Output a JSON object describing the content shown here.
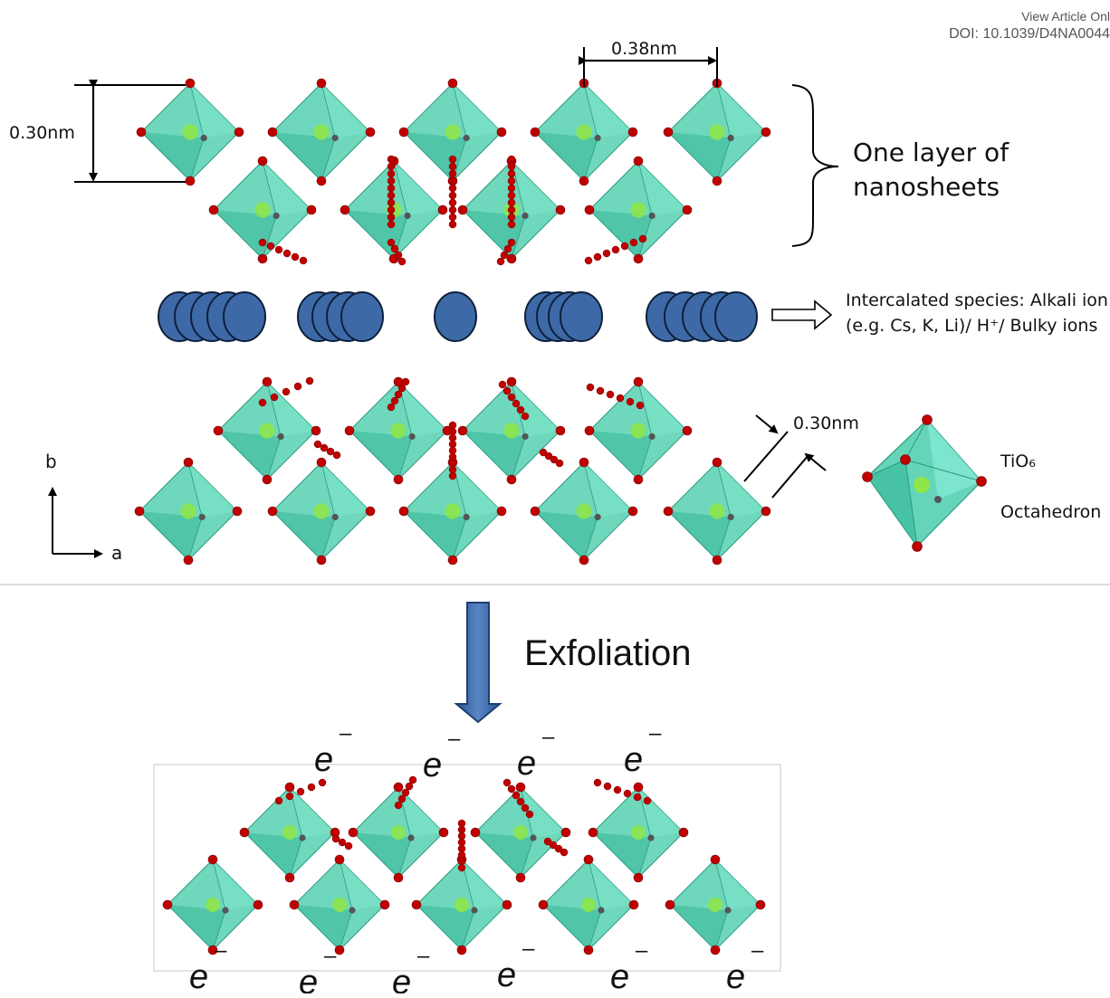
{
  "header": {
    "line1": "View Article Onl",
    "line2": "DOI: 10.1039/D4NA0044"
  },
  "labels": {
    "dim_b": "0.38nm",
    "dim_a": "0.30nm",
    "dim_c": "0.30nm",
    "layer_line1": "One layer of",
    "layer_line2": "nanosheets",
    "intercal_line1": "Intercalated species: Alkali ion",
    "intercal_line2": "(e.g. Cs, K, Li)/ H⁺/ Bulky ions",
    "tio6": "TiO₆",
    "octahedron": "Octahedron",
    "axis_b": "b",
    "axis_a": "a",
    "exfoliation": "Exfoliation"
  },
  "electron": {
    "symbol": "e",
    "charge": "–"
  },
  "colors": {
    "octahedron": "#3fc9a6",
    "oxygen": "#c00000",
    "titanium": "#8ee64a",
    "ion": "#3d6aa6",
    "arrow": "#2e5a96"
  }
}
